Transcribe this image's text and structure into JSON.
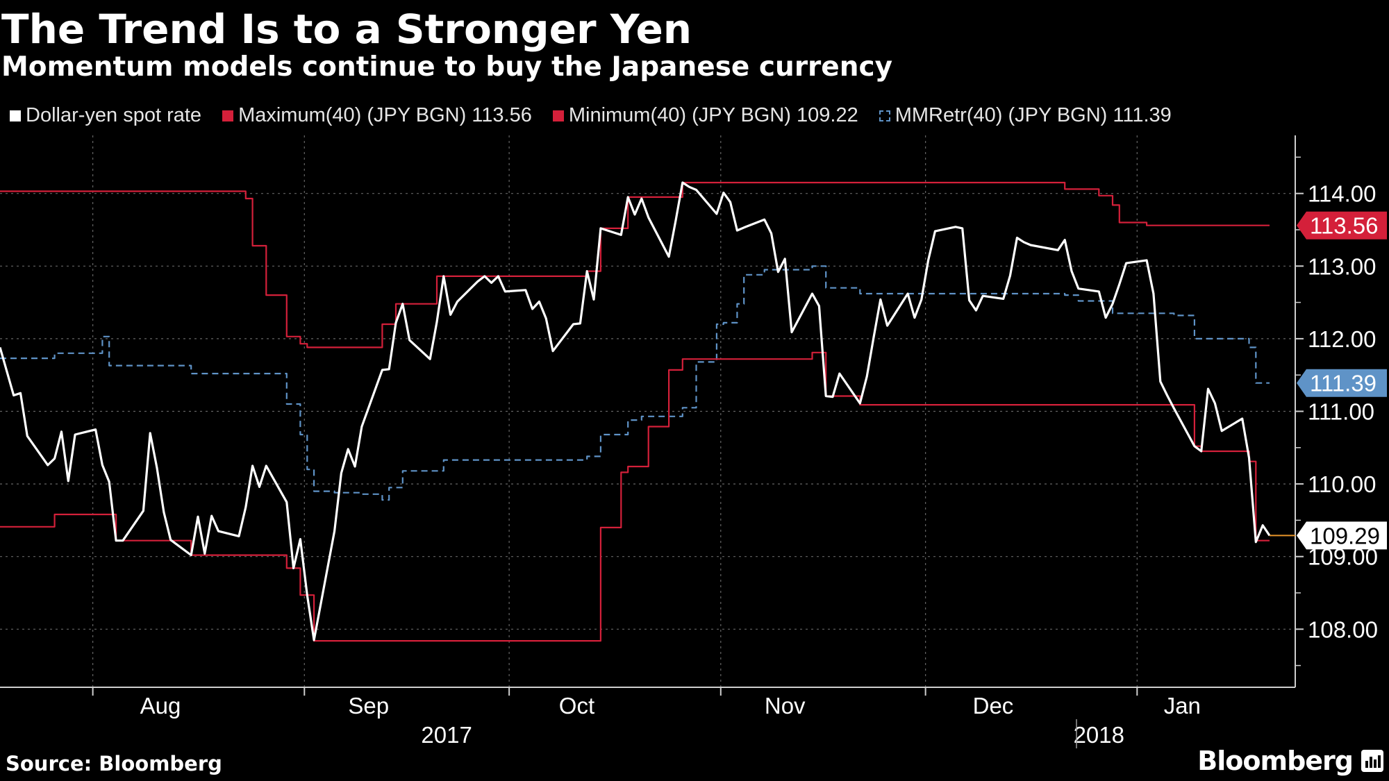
{
  "header": {
    "title": "The Trend Is to a Stronger Yen",
    "subtitle": "Momentum models continue to buy the Japanese currency"
  },
  "legend": [
    {
      "label": "Dollar-yen spot rate",
      "swatch": "white"
    },
    {
      "label": "Maximum(40) (JPY BGN) 113.56",
      "swatch": "red"
    },
    {
      "label": "Minimum(40) (JPY BGN) 109.22",
      "swatch": "red"
    },
    {
      "label": "MMRetr(40) (JPY BGN) 111.39",
      "swatch": "dashed"
    }
  ],
  "footer": {
    "source": "Source: Bloomberg",
    "brand": "Bloomberg"
  },
  "colors": {
    "background": "#000000",
    "spot": "#ffffff",
    "max_min": "#d4203a",
    "mmretr": "#5f93c7",
    "grid": "#666666",
    "last_value_line": "#e8952a"
  },
  "chart_data": {
    "type": "line",
    "ylim": [
      107.2,
      114.8
    ],
    "grid": true,
    "legend_position": "top",
    "x_start": "2017-07-24",
    "x_end": "2018-01-26",
    "yticks": [
      108,
      109,
      110,
      111,
      112,
      113,
      114
    ],
    "ytick_labels": [
      "108.00",
      "109.00",
      "110.00",
      "111.00",
      "112.00",
      "113.00",
      "114.00"
    ],
    "month_ticks": [
      {
        "date": "2017-08-01",
        "label": "Aug"
      },
      {
        "date": "2017-09-01",
        "label": "Sep"
      },
      {
        "date": "2017-10-01",
        "label": "Oct"
      },
      {
        "date": "2017-11-01",
        "label": "Nov"
      },
      {
        "date": "2017-12-01",
        "label": "Dec"
      },
      {
        "date": "2018-01-01",
        "label": "Jan"
      }
    ],
    "year_labels": [
      {
        "date": "2017-10-01",
        "label": "2017"
      },
      {
        "date": "2018-01-01",
        "label": "2018"
      }
    ],
    "series": [
      {
        "name": "Dollar-yen spot rate",
        "points": [
          [
            "2017-07-24",
            111.88
          ],
          [
            "2017-07-26",
            111.22
          ],
          [
            "2017-07-27",
            111.25
          ],
          [
            "2017-07-28",
            110.66
          ],
          [
            "2017-07-31",
            110.26
          ],
          [
            "2017-08-01",
            110.35
          ],
          [
            "2017-08-02",
            110.72
          ],
          [
            "2017-08-03",
            110.04
          ],
          [
            "2017-08-04",
            110.68
          ],
          [
            "2017-08-07",
            110.75
          ],
          [
            "2017-08-08",
            110.26
          ],
          [
            "2017-08-09",
            110.03
          ],
          [
            "2017-08-10",
            109.22
          ],
          [
            "2017-08-11",
            109.22
          ],
          [
            "2017-08-14",
            109.63
          ],
          [
            "2017-08-15",
            110.7
          ],
          [
            "2017-08-16",
            110.22
          ],
          [
            "2017-08-17",
            109.61
          ],
          [
            "2017-08-18",
            109.23
          ],
          [
            "2017-08-21",
            109.02
          ],
          [
            "2017-08-22",
            109.55
          ],
          [
            "2017-08-23",
            109.04
          ],
          [
            "2017-08-24",
            109.56
          ],
          [
            "2017-08-25",
            109.35
          ],
          [
            "2017-08-28",
            109.28
          ],
          [
            "2017-08-29",
            109.68
          ],
          [
            "2017-08-30",
            110.25
          ],
          [
            "2017-08-31",
            109.96
          ],
          [
            "2017-09-01",
            110.25
          ],
          [
            "2017-09-04",
            109.75
          ],
          [
            "2017-09-05",
            108.84
          ],
          [
            "2017-09-06",
            109.24
          ],
          [
            "2017-09-07",
            108.47
          ],
          [
            "2017-09-08",
            107.85
          ],
          [
            "2017-09-11",
            109.35
          ],
          [
            "2017-09-12",
            110.15
          ],
          [
            "2017-09-13",
            110.48
          ],
          [
            "2017-09-14",
            110.24
          ],
          [
            "2017-09-15",
            110.79
          ],
          [
            "2017-09-18",
            111.57
          ],
          [
            "2017-09-19",
            111.58
          ],
          [
            "2017-09-20",
            112.22
          ],
          [
            "2017-09-21",
            112.48
          ],
          [
            "2017-09-22",
            111.98
          ],
          [
            "2017-09-25",
            111.72
          ],
          [
            "2017-09-26",
            112.23
          ],
          [
            "2017-09-27",
            112.86
          ],
          [
            "2017-09-28",
            112.33
          ],
          [
            "2017-09-29",
            112.51
          ],
          [
            "2017-10-02",
            112.79
          ],
          [
            "2017-10-03",
            112.86
          ],
          [
            "2017-10-04",
            112.77
          ],
          [
            "2017-10-05",
            112.86
          ],
          [
            "2017-10-06",
            112.65
          ],
          [
            "2017-10-09",
            112.67
          ],
          [
            "2017-10-10",
            112.41
          ],
          [
            "2017-10-11",
            112.51
          ],
          [
            "2017-10-12",
            112.28
          ],
          [
            "2017-10-13",
            111.83
          ],
          [
            "2017-10-16",
            112.2
          ],
          [
            "2017-10-17",
            112.21
          ],
          [
            "2017-10-18",
            112.93
          ],
          [
            "2017-10-19",
            112.54
          ],
          [
            "2017-10-20",
            113.52
          ],
          [
            "2017-10-23",
            113.43
          ],
          [
            "2017-10-24",
            113.95
          ],
          [
            "2017-10-25",
            113.71
          ],
          [
            "2017-10-26",
            113.93
          ],
          [
            "2017-10-27",
            113.67
          ],
          [
            "2017-10-30",
            113.13
          ],
          [
            "2017-10-31",
            113.63
          ],
          [
            "2017-11-01",
            114.15
          ],
          [
            "2017-11-02",
            114.09
          ],
          [
            "2017-11-03",
            114.05
          ],
          [
            "2017-11-06",
            113.72
          ],
          [
            "2017-11-07",
            114.01
          ],
          [
            "2017-11-08",
            113.88
          ],
          [
            "2017-11-09",
            113.49
          ],
          [
            "2017-11-10",
            113.53
          ],
          [
            "2017-11-13",
            113.64
          ],
          [
            "2017-11-14",
            113.45
          ],
          [
            "2017-11-15",
            112.92
          ],
          [
            "2017-11-16",
            113.1
          ],
          [
            "2017-11-17",
            112.09
          ],
          [
            "2017-11-20",
            112.62
          ],
          [
            "2017-11-21",
            112.45
          ],
          [
            "2017-11-22",
            111.21
          ],
          [
            "2017-11-23",
            111.2
          ],
          [
            "2017-11-24",
            111.52
          ],
          [
            "2017-11-27",
            111.11
          ],
          [
            "2017-11-28",
            111.48
          ],
          [
            "2017-11-29",
            112.02
          ],
          [
            "2017-11-30",
            112.54
          ],
          [
            "2017-12-01",
            112.18
          ],
          [
            "2017-12-04",
            112.62
          ],
          [
            "2017-12-05",
            112.29
          ],
          [
            "2017-12-06",
            112.54
          ],
          [
            "2017-12-07",
            113.08
          ],
          [
            "2017-12-08",
            113.48
          ],
          [
            "2017-12-11",
            113.54
          ],
          [
            "2017-12-12",
            113.52
          ],
          [
            "2017-12-13",
            112.53
          ],
          [
            "2017-12-14",
            112.39
          ],
          [
            "2017-12-15",
            112.59
          ],
          [
            "2017-12-18",
            112.55
          ],
          [
            "2017-12-19",
            112.87
          ],
          [
            "2017-12-20",
            113.39
          ],
          [
            "2017-12-21",
            113.33
          ],
          [
            "2017-12-22",
            113.29
          ],
          [
            "2017-12-26",
            113.22
          ],
          [
            "2017-12-27",
            113.36
          ],
          [
            "2017-12-28",
            112.93
          ],
          [
            "2017-12-29",
            112.69
          ],
          [
            "2018-01-01",
            112.65
          ],
          [
            "2018-01-02",
            112.29
          ],
          [
            "2018-01-03",
            112.48
          ],
          [
            "2018-01-04",
            112.75
          ],
          [
            "2018-01-05",
            113.04
          ],
          [
            "2018-01-08",
            113.08
          ],
          [
            "2018-01-09",
            112.62
          ],
          [
            "2018-01-10",
            111.41
          ],
          [
            "2018-01-11",
            111.22
          ],
          [
            "2018-01-12",
            111.04
          ],
          [
            "2018-01-15",
            110.52
          ],
          [
            "2018-01-16",
            110.45
          ],
          [
            "2018-01-17",
            111.31
          ],
          [
            "2018-01-18",
            111.11
          ],
          [
            "2018-01-19",
            110.73
          ],
          [
            "2018-01-22",
            110.9
          ],
          [
            "2018-01-23",
            110.36
          ],
          [
            "2018-01-24",
            109.2
          ],
          [
            "2018-01-25",
            109.43
          ],
          [
            "2018-01-26",
            109.29
          ]
        ]
      },
      {
        "name": "Maximum(40) (JPY BGN) 113.56",
        "step": true,
        "points": [
          [
            "2017-07-24",
            114.03
          ],
          [
            "2017-08-28",
            114.03
          ],
          [
            "2017-08-29",
            113.93
          ],
          [
            "2017-08-30",
            113.28
          ],
          [
            "2017-09-01",
            112.6
          ],
          [
            "2017-09-04",
            112.03
          ],
          [
            "2017-09-06",
            111.93
          ],
          [
            "2017-09-07",
            111.88
          ],
          [
            "2017-09-15",
            111.88
          ],
          [
            "2017-09-18",
            112.2
          ],
          [
            "2017-09-20",
            112.48
          ],
          [
            "2017-09-25",
            112.48
          ],
          [
            "2017-09-26",
            112.86
          ],
          [
            "2017-10-17",
            112.86
          ],
          [
            "2017-10-18",
            112.93
          ],
          [
            "2017-10-20",
            113.52
          ],
          [
            "2017-10-23",
            113.52
          ],
          [
            "2017-10-24",
            113.95
          ],
          [
            "2017-10-31",
            113.95
          ],
          [
            "2017-11-01",
            114.15
          ],
          [
            "2017-12-26",
            114.15
          ],
          [
            "2017-12-27",
            114.06
          ],
          [
            "2018-01-01",
            113.97
          ],
          [
            "2018-01-03",
            113.84
          ],
          [
            "2018-01-04",
            113.6
          ],
          [
            "2018-01-08",
            113.56
          ],
          [
            "2018-01-26",
            113.56
          ]
        ]
      },
      {
        "name": "Minimum(40) (JPY BGN) 109.22",
        "step": true,
        "points": [
          [
            "2017-07-24",
            109.41
          ],
          [
            "2017-07-31",
            109.41
          ],
          [
            "2017-08-01",
            109.58
          ],
          [
            "2017-08-09",
            109.58
          ],
          [
            "2017-08-10",
            109.22
          ],
          [
            "2017-08-21",
            109.02
          ],
          [
            "2017-09-04",
            108.84
          ],
          [
            "2017-09-06",
            108.47
          ],
          [
            "2017-09-08",
            107.84
          ],
          [
            "2017-10-19",
            107.84
          ],
          [
            "2017-10-20",
            109.4
          ],
          [
            "2017-10-23",
            110.16
          ],
          [
            "2017-10-24",
            110.24
          ],
          [
            "2017-10-27",
            110.79
          ],
          [
            "2017-10-30",
            111.57
          ],
          [
            "2017-11-01",
            111.72
          ],
          [
            "2017-11-20",
            111.81
          ],
          [
            "2017-11-22",
            111.21
          ],
          [
            "2017-11-27",
            111.09
          ],
          [
            "2018-01-11",
            111.09
          ],
          [
            "2018-01-15",
            110.52
          ],
          [
            "2018-01-16",
            110.45
          ],
          [
            "2018-01-23",
            110.31
          ],
          [
            "2018-01-24",
            109.22
          ],
          [
            "2018-01-26",
            109.22
          ]
        ]
      },
      {
        "name": "MMRetr(40) (JPY BGN) 111.39",
        "step": true,
        "points": [
          [
            "2017-07-24",
            111.73
          ],
          [
            "2017-07-31",
            111.73
          ],
          [
            "2017-08-01",
            111.8
          ],
          [
            "2017-08-07",
            111.8
          ],
          [
            "2017-08-08",
            112.03
          ],
          [
            "2017-08-09",
            111.63
          ],
          [
            "2017-08-18",
            111.63
          ],
          [
            "2017-08-21",
            111.52
          ],
          [
            "2017-09-01",
            111.52
          ],
          [
            "2017-09-04",
            111.1
          ],
          [
            "2017-09-06",
            110.68
          ],
          [
            "2017-09-07",
            110.2
          ],
          [
            "2017-09-08",
            109.9
          ],
          [
            "2017-09-11",
            109.88
          ],
          [
            "2017-09-15",
            109.86
          ],
          [
            "2017-09-18",
            109.78
          ],
          [
            "2017-09-19",
            109.95
          ],
          [
            "2017-09-21",
            110.18
          ],
          [
            "2017-09-27",
            110.33
          ],
          [
            "2017-10-17",
            110.33
          ],
          [
            "2017-10-18",
            110.38
          ],
          [
            "2017-10-20",
            110.68
          ],
          [
            "2017-10-24",
            110.88
          ],
          [
            "2017-10-26",
            110.93
          ],
          [
            "2017-10-31",
            110.93
          ],
          [
            "2017-11-01",
            111.05
          ],
          [
            "2017-11-03",
            111.68
          ],
          [
            "2017-11-06",
            112.2
          ],
          [
            "2017-11-07",
            112.22
          ],
          [
            "2017-11-09",
            112.48
          ],
          [
            "2017-11-10",
            112.88
          ],
          [
            "2017-11-13",
            112.95
          ],
          [
            "2017-11-20",
            113.0
          ],
          [
            "2017-11-22",
            112.7
          ],
          [
            "2017-11-27",
            112.62
          ],
          [
            "2017-12-26",
            112.62
          ],
          [
            "2017-12-27",
            112.6
          ],
          [
            "2017-12-29",
            112.52
          ],
          [
            "2018-01-03",
            112.35
          ],
          [
            "2018-01-12",
            112.32
          ],
          [
            "2018-01-15",
            112.0
          ],
          [
            "2018-01-22",
            112.0
          ],
          [
            "2018-01-23",
            111.88
          ],
          [
            "2018-01-24",
            111.39
          ],
          [
            "2018-01-26",
            111.39
          ]
        ]
      }
    ],
    "last_value_labels": [
      {
        "series": "Maximum(40) (JPY BGN) 113.56",
        "text": "113.56",
        "value": 113.56,
        "bg": "#d4203a",
        "fg": "#ffffff"
      },
      {
        "series": "MMRetr(40) (JPY BGN) 111.39",
        "text": "111.39",
        "value": 111.39,
        "bg": "#5f93c7",
        "fg": "#ffffff"
      },
      {
        "series": "Dollar-yen spot rate",
        "text": "109.29",
        "value": 109.29,
        "bg": "#ffffff",
        "fg": "#000000"
      }
    ]
  }
}
